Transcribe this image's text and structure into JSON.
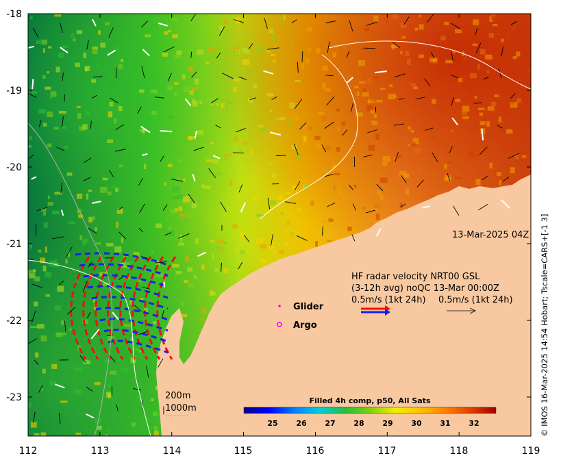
{
  "map": {
    "lon_ticks": [
      "112",
      "113",
      "114",
      "115",
      "116",
      "117",
      "118",
      "119"
    ],
    "lat_ticks": [
      "-18",
      "-19",
      "-20",
      "-21",
      "-22",
      "-23"
    ],
    "timestamp": "13-Mar-2025 04Z",
    "credit": "© IMOS 16-Mar-2025 14:54 Hobart; Tscale=CARS+[-1 3]",
    "colors": {
      "land": "#f8c9a0",
      "warm": "#e06a10",
      "cool": "#20c020",
      "radar_red": "#ee1111",
      "radar_blue": "#1122ee",
      "glider": "#ee00ee",
      "argo": "#ee00ee"
    }
  },
  "legend": {
    "glider_label": "Glider",
    "argo_label": "Argo",
    "hf_line1": "HF radar velocity  NRT00 GSL",
    "hf_line2": "(3-12h avg) noQC 13-Mar 00:00Z",
    "hf_line3a": "0.5m/s (1kt 24h)",
    "hf_line3b": "0.5m/s (1kt 24h)",
    "depth_200": "200m",
    "depth_1000": "1000m"
  },
  "colorbar": {
    "title": "Filled 4h comp, p50, All Sats",
    "ticks": [
      "25",
      "26",
      "27",
      "28",
      "29",
      "30",
      "31",
      "32"
    ],
    "stops": [
      "#00008b",
      "#0000ff",
      "#0080ff",
      "#00d0e0",
      "#20c040",
      "#80d010",
      "#f0f000",
      "#ffc000",
      "#ff8000",
      "#e04000",
      "#a00000"
    ]
  }
}
